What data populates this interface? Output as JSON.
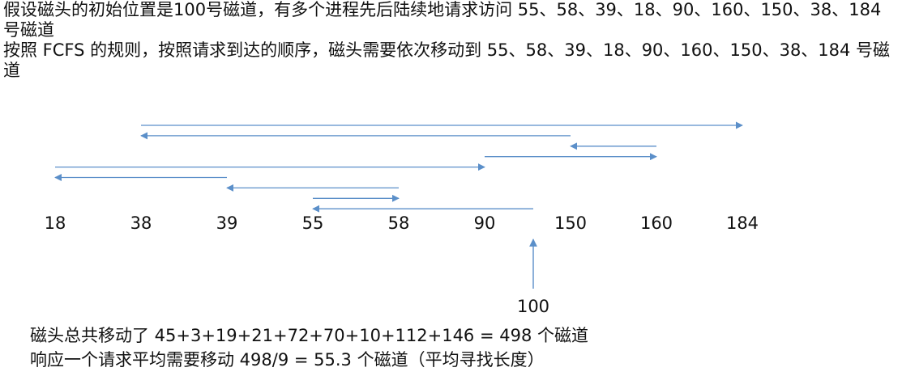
{
  "intro": {
    "line1": "假设磁头的初始位置是100号磁道，有多个进程先后陆续地请求访问 55、58、39、18、90、160、150、38、184 号磁道",
    "line2": "按照 FCFS 的规则，按照请求到达的顺序，磁头需要依次移动到 55、58、39、18、90、160、150、38、184 号磁道"
  },
  "axis": {
    "tracks": [
      "18",
      "38",
      "39",
      "55",
      "58",
      "90",
      "150",
      "160",
      "184"
    ]
  },
  "start": {
    "label": "100",
    "track": 100
  },
  "movements": [
    {
      "from": 100,
      "to": 55
    },
    {
      "from": 55,
      "to": 58
    },
    {
      "from": 58,
      "to": 39
    },
    {
      "from": 39,
      "to": 18
    },
    {
      "from": 18,
      "to": 90
    },
    {
      "from": 90,
      "to": 160
    },
    {
      "from": 160,
      "to": 150
    },
    {
      "from": 150,
      "to": 38
    },
    {
      "from": 38,
      "to": 184
    }
  ],
  "colors": {
    "arrow": "#5b8fc9",
    "shaft": "#9a9a9a"
  },
  "summary": {
    "line1": "磁头总共移动了  45+3+19+21+72+70+10+112+146 = 498  个磁道",
    "line2": "响应一个请求平均需要移动 498/9 = 55.3 个磁道（平均寻找长度）"
  }
}
